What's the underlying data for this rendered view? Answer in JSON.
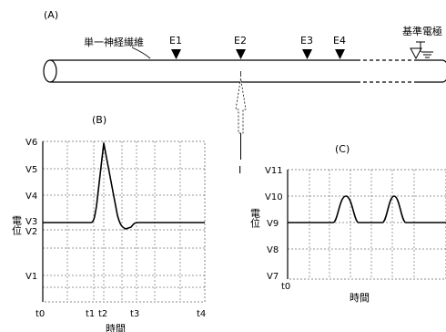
{
  "panel_a": {
    "label": "(A)",
    "fiber_label": "単一神経繊維",
    "reference_electrode_label": "基準電極",
    "electrodes": [
      "E1",
      "E2",
      "E3",
      "E4"
    ],
    "current_label": "I"
  },
  "chart_data": [
    {
      "type": "line",
      "title": "(B)",
      "ylabel": "電位",
      "xlabel": "時間",
      "x_ticks": [
        "t0",
        "t1",
        "t2",
        "t3",
        "t4"
      ],
      "y_ticks": [
        "V1",
        "V2",
        "V3",
        "V4",
        "V5",
        "V6"
      ],
      "series": [
        {
          "values": [
            [
              "t0",
              "V3"
            ],
            [
              "t1",
              "V3"
            ],
            [
              "t2",
              "V6"
            ],
            [
              "t3",
              "V2"
            ],
            [
              "t4",
              "V3"
            ]
          ]
        }
      ],
      "grid": true
    },
    {
      "type": "line",
      "title": "(C)",
      "ylabel": "電位",
      "xlabel": "時間",
      "x_ticks": [
        "t0"
      ],
      "y_ticks": [
        "V7",
        "V8",
        "V9",
        "V10",
        "V11"
      ],
      "series": [
        {
          "values": [
            [
              "t0",
              "V9"
            ],
            [
              "peak1",
              "V10"
            ],
            [
              "peak2",
              "V10"
            ]
          ]
        }
      ],
      "grid": true
    }
  ]
}
